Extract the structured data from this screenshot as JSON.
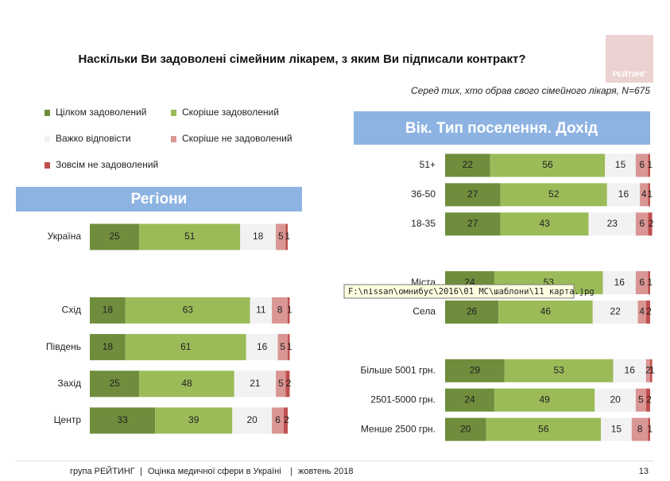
{
  "title": "Наскільки Ви задоволені сімейним лікарем, з яким Ви підписали контракт?",
  "subtitle": "Серед тих, хто обрав  свого сімейного лікаря, N=675",
  "logo": "РЕЙТИНГ",
  "tooltip": "F:\\nissan\\омнибус\\2016\\01 МС\\шаблони\\11 карта.jpg",
  "footer": [
    "група РЕЙТИНГ",
    "Оцінка медичної сфери в Україні",
    "жовтень 2018"
  ],
  "page_number": "13",
  "chart_data": [
    {
      "type": "stacked-bar-horizontal",
      "title": "Регіони",
      "categories": [
        "Україна",
        null,
        "Схід",
        "Південь",
        "Захід",
        "Центр"
      ],
      "series": [
        {
          "name": "Цілком задоволений",
          "color": "#6f8d3c",
          "values": [
            25,
            null,
            18,
            18,
            25,
            33
          ]
        },
        {
          "name": "Скоріше задоволений",
          "color": "#9bbb59",
          "values": [
            51,
            null,
            63,
            61,
            48,
            39
          ]
        },
        {
          "name": "Важко відповісти",
          "color": "#f2f2f2",
          "values": [
            18,
            null,
            11,
            16,
            21,
            20
          ]
        },
        {
          "name": "Скоріше не задоволений",
          "color": "#d99694",
          "values": [
            5,
            null,
            8,
            5,
            5,
            6
          ]
        },
        {
          "name": "Зовсім не задоволений",
          "color": "#c0504d",
          "values": [
            1,
            null,
            1,
            1,
            2,
            2
          ]
        }
      ]
    },
    {
      "type": "stacked-bar-horizontal",
      "title": "Вік. Тип поселення. Дохід",
      "categories": [
        "51+",
        "36-50",
        "18-35",
        null,
        "Міста",
        "Села",
        null,
        "Більше 5001 грн.",
        "2501-5000 грн.",
        "Менше 2500 грн."
      ],
      "series": [
        {
          "color": "#6f8d3c",
          "values": [
            22,
            27,
            27,
            null,
            24,
            26,
            null,
            29,
            24,
            20
          ]
        },
        {
          "color": "#9bbb59",
          "values": [
            56,
            52,
            43,
            null,
            53,
            46,
            null,
            53,
            49,
            56
          ]
        },
        {
          "color": "#f2f2f2",
          "values": [
            15,
            16,
            23,
            null,
            16,
            22,
            null,
            16,
            20,
            15
          ]
        },
        {
          "color": "#d99694",
          "values": [
            6,
            4,
            6,
            null,
            6,
            4,
            null,
            2,
            5,
            8
          ]
        },
        {
          "color": "#c0504d",
          "values": [
            1,
            1,
            2,
            null,
            1,
            2,
            null,
            1,
            2,
            1
          ]
        }
      ]
    }
  ]
}
